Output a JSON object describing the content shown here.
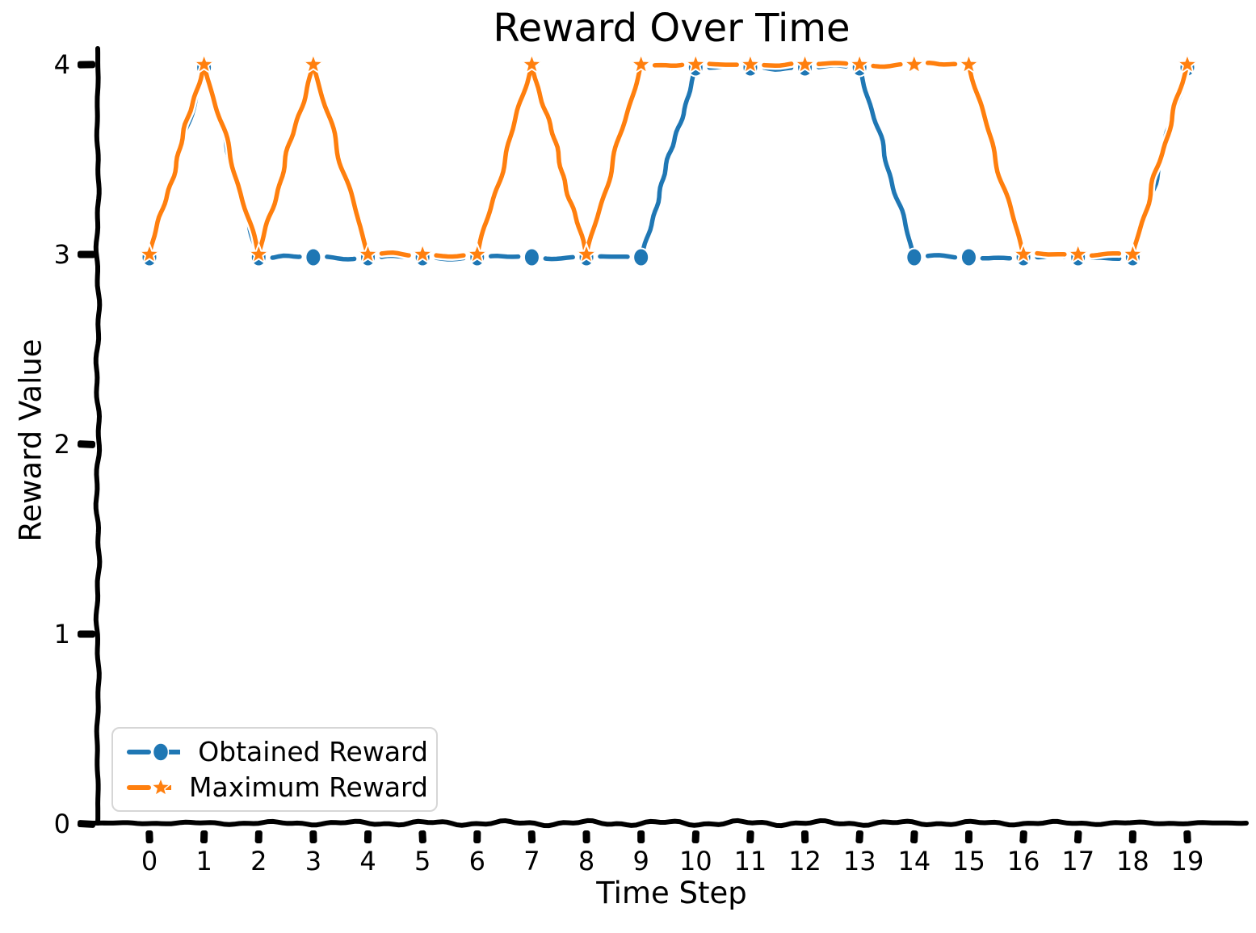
{
  "chart_data": {
    "type": "line",
    "style": "xkcd-sketch",
    "title": "Reward Over Time",
    "xlabel": "Time Step",
    "ylabel": "Reward Value",
    "background": "#ffffff",
    "axis_color": "#000000",
    "grid": false,
    "legend_position": "lower-left",
    "x": [
      0,
      1,
      2,
      3,
      4,
      5,
      6,
      7,
      8,
      9,
      10,
      11,
      12,
      13,
      14,
      15,
      16,
      17,
      18,
      19
    ],
    "xticks": [
      0,
      1,
      2,
      3,
      4,
      5,
      6,
      7,
      8,
      9,
      10,
      11,
      12,
      13,
      14,
      15,
      16,
      17,
      18,
      19
    ],
    "yticks": [
      0,
      1,
      2,
      3,
      4
    ],
    "xlim": [
      0,
      19
    ],
    "ylim": [
      0,
      4
    ],
    "series": [
      {
        "name": "Obtained Reward",
        "color": "#1f77b4",
        "marker": "circle",
        "linestyle": "dashed",
        "values": [
          3,
          4,
          3,
          3,
          3,
          3,
          3,
          3,
          3,
          3,
          4,
          4,
          4,
          4,
          3,
          3,
          3,
          3,
          3,
          4
        ]
      },
      {
        "name": "Maximum Reward",
        "color": "#ff7f0e",
        "marker": "star",
        "linestyle": "dashed",
        "values": [
          3,
          4,
          3,
          4,
          3,
          3,
          3,
          4,
          3,
          4,
          4,
          4,
          4,
          4,
          4,
          4,
          3,
          3,
          3,
          4
        ]
      }
    ]
  }
}
